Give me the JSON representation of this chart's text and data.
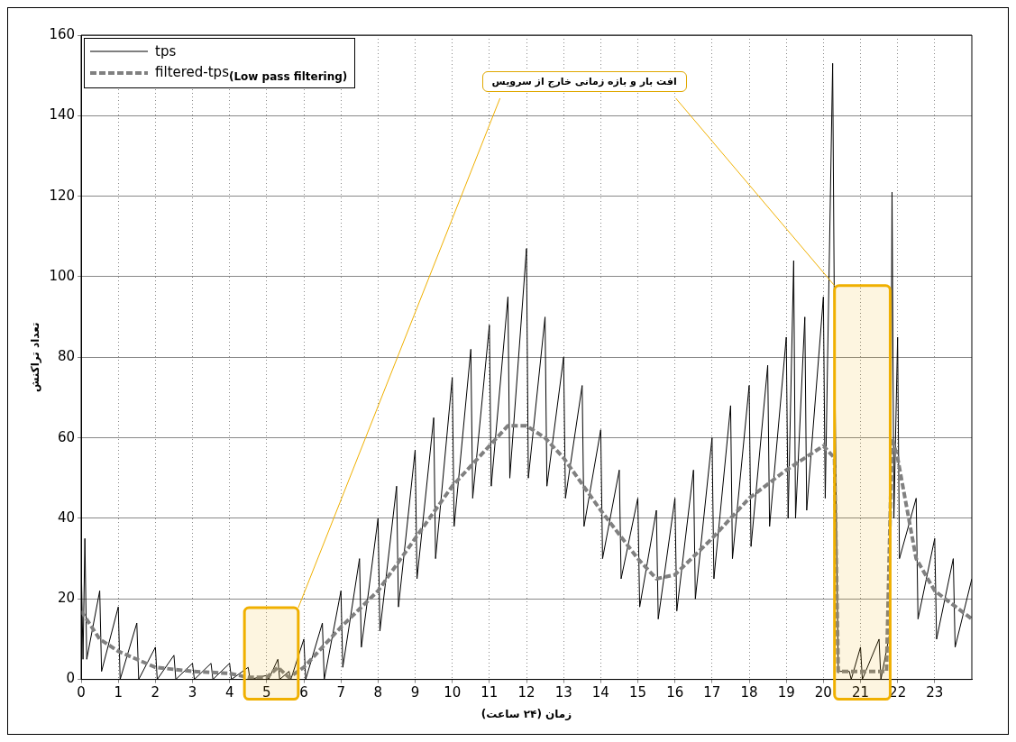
{
  "chart_data": {
    "type": "line",
    "xlabel": "زمان (۲۴ ساعت)",
    "ylabel": "تعداد تراکنش",
    "xlim": [
      0,
      24
    ],
    "xticks": [
      0,
      1,
      2,
      3,
      4,
      5,
      6,
      7,
      8,
      9,
      10,
      11,
      12,
      13,
      14,
      15,
      16,
      17,
      18,
      19,
      20,
      21,
      22,
      23
    ],
    "ylim": [
      0,
      160
    ],
    "yticks": [
      0,
      20,
      40,
      60,
      80,
      100,
      120,
      140,
      160
    ],
    "grid": true,
    "legend": "top left",
    "marker": "none",
    "bands": [
      {
        "axis": "x",
        "from": 4.4,
        "to": 5.85,
        "color": "#f0b000"
      },
      {
        "axis": "x",
        "from": 20.3,
        "to": 21.8,
        "color": "#f0b000",
        "label": "افت بار و بازه زمانی خارج از سرویس"
      }
    ],
    "series": [
      {
        "name": "tps",
        "color": "#000000",
        "line_style": "solid",
        "x": [
          0,
          0.05,
          0.1,
          0.15,
          0.5,
          0.55,
          1,
          1.05,
          1.5,
          1.55,
          2,
          2.05,
          2.5,
          2.55,
          3,
          3.05,
          3.5,
          3.55,
          4,
          4.05,
          4.5,
          4.55,
          5,
          5.05,
          5.3,
          5.35,
          5.6,
          5.65,
          6,
          6.05,
          6.5,
          6.55,
          7,
          7.05,
          7.5,
          7.55,
          8,
          8.05,
          8.5,
          8.55,
          9,
          9.05,
          9.5,
          9.55,
          10,
          10.05,
          10.5,
          10.55,
          11,
          11.05,
          11.5,
          11.55,
          12,
          12.05,
          12.5,
          12.55,
          13,
          13.05,
          13.5,
          13.55,
          14,
          14.05,
          14.5,
          14.55,
          15,
          15.05,
          15.5,
          15.55,
          16,
          16.05,
          16.5,
          16.55,
          17,
          17.05,
          17.5,
          17.55,
          18,
          18.05,
          18.5,
          18.55,
          19,
          19.05,
          19.2,
          19.25,
          19.5,
          19.55,
          20,
          20.05,
          20.25,
          20.3,
          20.35,
          20.4,
          20.7,
          20.75,
          21,
          21.05,
          21.5,
          21.55,
          21.8,
          21.85,
          21.9,
          22,
          22.05,
          22.5,
          22.55,
          23,
          23.05,
          23.5,
          23.55,
          24
        ],
        "values": [
          30,
          5,
          35,
          5,
          22,
          2,
          18,
          0,
          14,
          0,
          8,
          0,
          6,
          0,
          4,
          0,
          4,
          0,
          4,
          0,
          3,
          0,
          1,
          0,
          5,
          0,
          2,
          0,
          10,
          0,
          14,
          0,
          22,
          3,
          30,
          8,
          40,
          12,
          48,
          18,
          57,
          25,
          65,
          30,
          75,
          38,
          82,
          45,
          88,
          48,
          95,
          50,
          107,
          50,
          90,
          48,
          80,
          45,
          73,
          38,
          62,
          30,
          52,
          25,
          45,
          18,
          42,
          15,
          45,
          17,
          52,
          20,
          60,
          25,
          68,
          30,
          73,
          33,
          78,
          38,
          85,
          40,
          104,
          40,
          90,
          42,
          95,
          45,
          153,
          85,
          40,
          2,
          2,
          0,
          8,
          0,
          10,
          0,
          12,
          121,
          40,
          85,
          30,
          45,
          15,
          35,
          10,
          30,
          8,
          25
        ]
      },
      {
        "name": "filtered-tps$_{(Low pass filtering)}$",
        "color": "#808080",
        "line_style": "dashed",
        "x": [
          0,
          0.5,
          1,
          1.5,
          2,
          3,
          4,
          4.5,
          5,
          5.3,
          5.6,
          6,
          6.5,
          7,
          8,
          9,
          10,
          11,
          11.5,
          12,
          12.5,
          13,
          14,
          15,
          15.5,
          16,
          17,
          18,
          19,
          20,
          20.3,
          20.4,
          21,
          21.7,
          21.85,
          22,
          22.5,
          23,
          24
        ],
        "values": [
          17,
          10,
          7,
          5,
          3,
          2,
          1.5,
          0.5,
          0.5,
          3,
          0.5,
          3,
          8,
          13,
          22,
          35,
          48,
          58,
          63,
          63,
          60,
          55,
          42,
          30,
          25,
          26,
          35,
          45,
          52,
          58,
          55,
          2,
          2,
          2,
          60,
          55,
          30,
          22,
          15
        ]
      }
    ]
  }
}
